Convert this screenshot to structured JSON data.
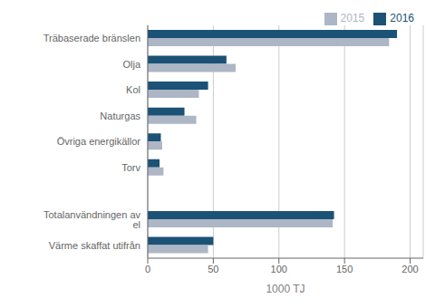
{
  "chart_data": {
    "type": "bar",
    "orientation": "horizontal",
    "categories": [
      "Träbaserade bränslen",
      "Olja",
      "Kol",
      "Naturgas",
      "Övriga energikällor",
      "Torv",
      null,
      "Totalanvändningen av el",
      "Värme skaffat utifrån"
    ],
    "series": [
      {
        "name": "2016",
        "color": "#1b5276",
        "values": [
          190,
          60,
          46,
          28,
          10,
          9,
          0,
          142,
          50
        ]
      },
      {
        "name": "2015",
        "color": "#adb6c5",
        "values": [
          184,
          67,
          39,
          37,
          11,
          12,
          0,
          141,
          46
        ]
      }
    ],
    "xlabel": "1000 TJ",
    "xlim": [
      0,
      210
    ],
    "xticks": [
      0,
      50,
      100,
      150,
      200
    ],
    "grid": true,
    "legend": "upper right"
  }
}
